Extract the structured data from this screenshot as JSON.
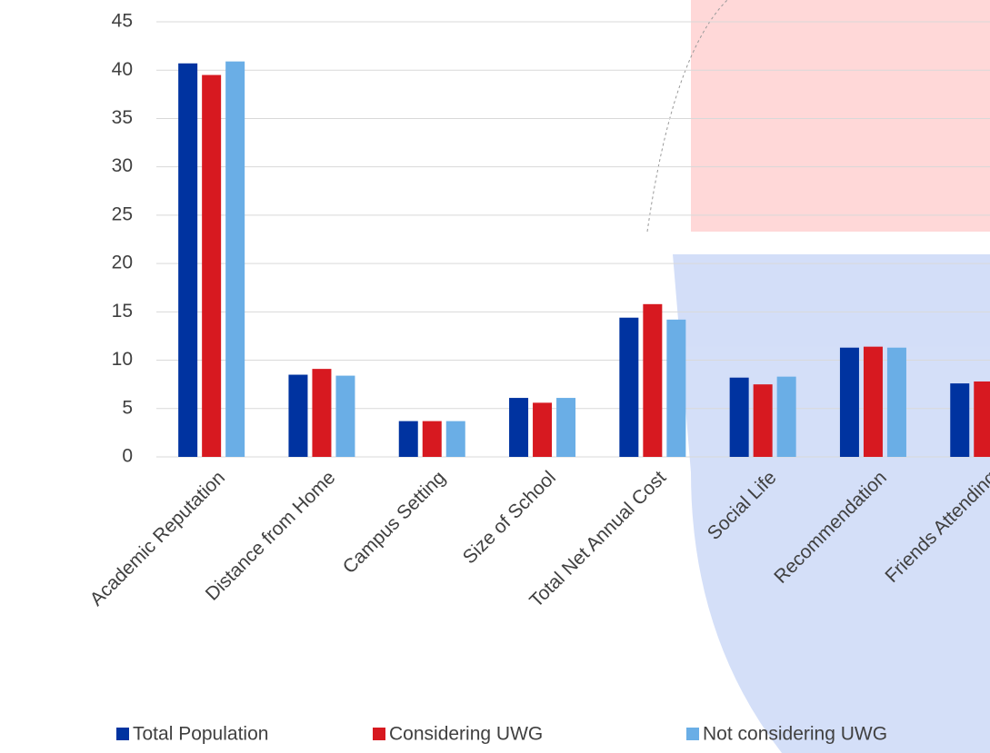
{
  "chart_data": {
    "type": "bar",
    "categories": [
      "Academic Reputation",
      "Distance from Home",
      "Campus Setting",
      "Size of School",
      "Total Net Annual Cost",
      "Social Life",
      "Recommendation",
      "Friends Attending"
    ],
    "series": [
      {
        "name": "Total Population",
        "color": "#0033a0",
        "values": [
          40.7,
          8.5,
          3.7,
          6.1,
          14.4,
          8.2,
          11.3,
          7.6
        ]
      },
      {
        "name": "Considering UWG",
        "color": "#d71920",
        "values": [
          39.5,
          9.1,
          3.7,
          5.6,
          15.8,
          7.5,
          11.4,
          7.8
        ]
      },
      {
        "name": "Not considering UWG",
        "color": "#6aaee6",
        "values": [
          40.9,
          8.4,
          3.7,
          6.1,
          14.2,
          8.3,
          11.3,
          null
        ]
      }
    ],
    "ylim": [
      0,
      45
    ],
    "yticks": [
      0,
      5,
      10,
      15,
      20,
      25,
      30,
      35,
      40,
      45
    ],
    "grid": true
  }
}
